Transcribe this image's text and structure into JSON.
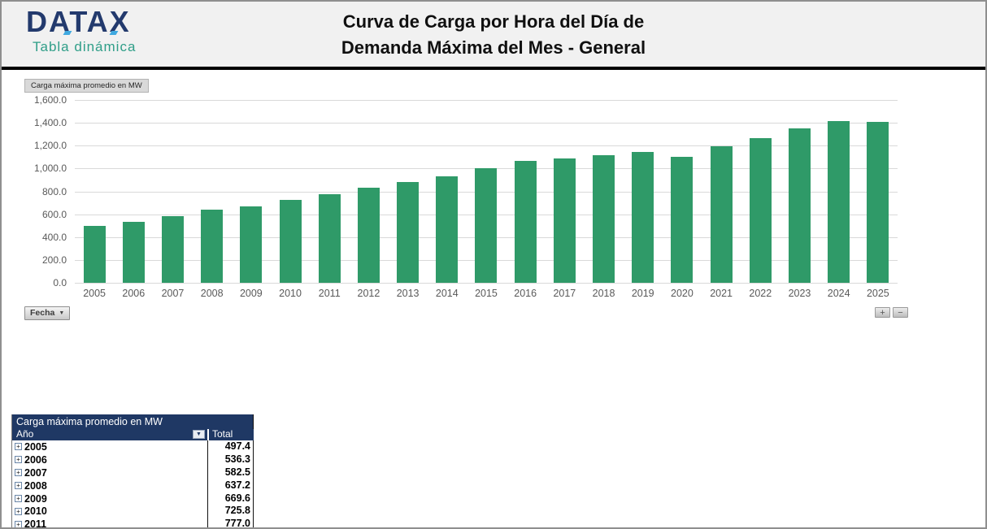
{
  "header": {
    "logo_text": "DATAX",
    "logo_subtitle": "Tabla dinámica",
    "title_line1": "Curva de Carga por Hora del Día de",
    "title_line2": "Demanda Máxima del Mes - General"
  },
  "chart": {
    "field_button_label": "Carga máxima promedio en MW",
    "axis_field_button_label": "Fecha",
    "axis_field_arrow": "▼",
    "zoom_in_label": "+",
    "zoom_out_label": "−",
    "colors": {
      "bar": "#2f9a68",
      "gridline": "#d9d9d9",
      "axis_text": "#595959"
    }
  },
  "chart_data": {
    "type": "bar",
    "title": "Carga máxima promedio en MW",
    "xlabel": "Fecha",
    "ylabel": "",
    "ylim": [
      0,
      1600
    ],
    "ytick_interval": 200,
    "grid": true,
    "legend": false,
    "categories": [
      "2005",
      "2006",
      "2007",
      "2008",
      "2009",
      "2010",
      "2011",
      "2012",
      "2013",
      "2014",
      "2015",
      "2016",
      "2017",
      "2018",
      "2019",
      "2020",
      "2021",
      "2022",
      "2023",
      "2024",
      "2025"
    ],
    "values": [
      497.4,
      536.3,
      582.5,
      637.2,
      669.6,
      725.8,
      777.0,
      830,
      885,
      935,
      1005,
      1065,
      1090,
      1115,
      1145,
      1100,
      1195,
      1265,
      1350,
      1412,
      1408
    ]
  },
  "pivot_table": {
    "title": "Carga máxima promedio en MW",
    "row_header": "Año",
    "value_header": "Total",
    "filter_arrow": "▼",
    "expand_glyph": "+",
    "rows": [
      {
        "label": "2005",
        "value": "497.4"
      },
      {
        "label": "2006",
        "value": "536.3"
      },
      {
        "label": "2007",
        "value": "582.5"
      },
      {
        "label": "2008",
        "value": "637.2"
      },
      {
        "label": "2009",
        "value": "669.6"
      },
      {
        "label": "2010",
        "value": "725.8"
      },
      {
        "label": "2011",
        "value": "777.0"
      }
    ]
  }
}
